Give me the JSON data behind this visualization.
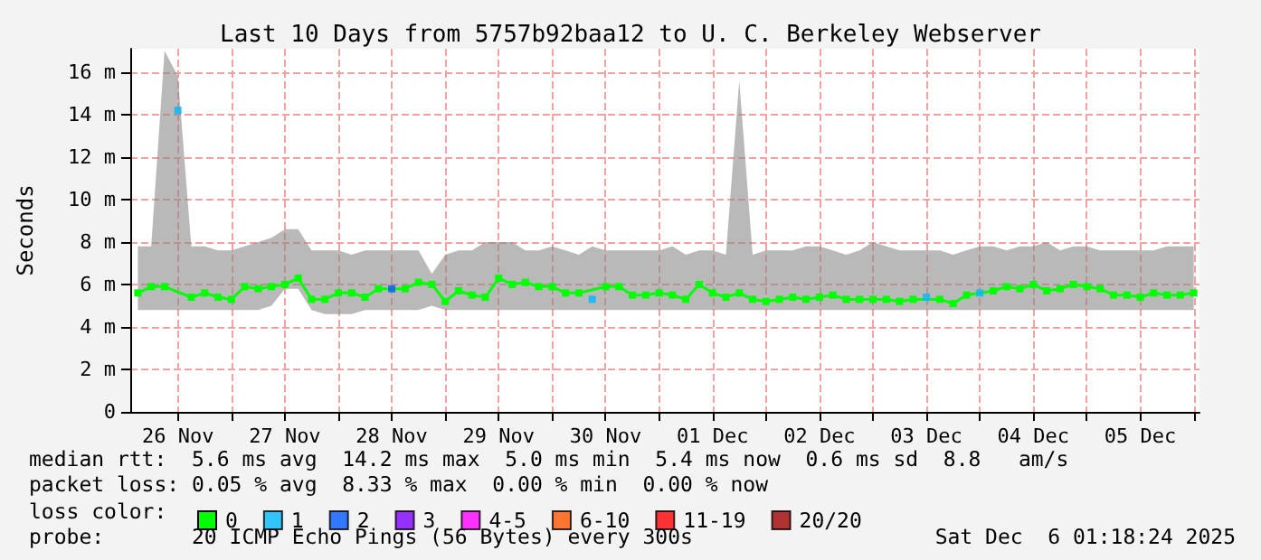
{
  "chart_data": {
    "type": "line",
    "title": "Last 10 Days from 5757b92baa12 to U. C. Berkeley Webserver",
    "ylabel": "Seconds",
    "xlim": [
      "2025-11-26T01:18",
      "2025-12-06T01:18"
    ],
    "xticks": [
      {
        "value": "2025-11-26T12:00",
        "label": "26 Nov"
      },
      {
        "value": "2025-11-27T00:00",
        "label": null
      },
      {
        "value": "2025-11-27T12:00",
        "label": "27 Nov"
      },
      {
        "value": "2025-11-28T00:00",
        "label": null
      },
      {
        "value": "2025-11-28T12:00",
        "label": "28 Nov"
      },
      {
        "value": "2025-11-29T00:00",
        "label": null
      },
      {
        "value": "2025-11-29T12:00",
        "label": "29 Nov"
      },
      {
        "value": "2025-11-30T00:00",
        "label": null
      },
      {
        "value": "2025-11-30T12:00",
        "label": "30 Nov"
      },
      {
        "value": "2025-12-01T00:00",
        "label": null
      },
      {
        "value": "2025-12-01T12:00",
        "label": "01 Dec"
      },
      {
        "value": "2025-12-02T00:00",
        "label": null
      },
      {
        "value": "2025-12-02T12:00",
        "label": "02 Dec"
      },
      {
        "value": "2025-12-03T00:00",
        "label": null
      },
      {
        "value": "2025-12-03T12:00",
        "label": "03 Dec"
      },
      {
        "value": "2025-12-04T00:00",
        "label": null
      },
      {
        "value": "2025-12-04T12:00",
        "label": "04 Dec"
      },
      {
        "value": "2025-12-05T00:00",
        "label": null
      },
      {
        "value": "2025-12-05T12:00",
        "label": "05 Dec"
      },
      {
        "value": "2025-12-06T00:00",
        "label": null
      }
    ],
    "ylim": [
      0,
      17.1
    ],
    "yticks": [
      0,
      {
        "value": 2,
        "label": "2 m"
      },
      {
        "value": 4,
        "label": "4 m"
      },
      {
        "value": 6,
        "label": "6 m"
      },
      {
        "value": 8,
        "label": "8 m"
      },
      {
        "value": 10,
        "label": "10 m"
      },
      {
        "value": 12,
        "label": "12 m"
      },
      {
        "value": 14,
        "label": "14 m"
      },
      {
        "value": 16,
        "label": "16 m"
      }
    ],
    "grid": true,
    "legend": "bottom",
    "legend_title": "loss color:",
    "marker": "square",
    "line_style": "solid",
    "annotations": [
      "median rtt:  5.6 ms avg  14.2 ms max  5.0 ms min  5.4 ms now  0.6 ms sd  8.8   am/s",
      "packet loss: 0.05 % avg  8.33 % max  0.00 % min  0.00 % now",
      "probe:       20 ICMP Echo Pings (56 Bytes) every 300s",
      "Sat Dec  6 01:18:24 2025"
    ],
    "x": [
      "2025-11-26T03:00",
      "2025-11-26T06:00",
      "2025-11-26T09:00",
      "2025-11-26T12:00",
      "2025-11-26T15:00",
      "2025-11-26T18:00",
      "2025-11-26T21:00",
      "2025-11-27T00:00",
      "2025-11-27T03:00",
      "2025-11-27T06:00",
      "2025-11-27T09:00",
      "2025-11-27T12:00",
      "2025-11-27T15:00",
      "2025-11-27T18:00",
      "2025-11-27T21:00",
      "2025-11-28T00:00",
      "2025-11-28T03:00",
      "2025-11-28T06:00",
      "2025-11-28T09:00",
      "2025-11-28T12:00",
      "2025-11-28T15:00",
      "2025-11-28T18:00",
      "2025-11-28T21:00",
      "2025-11-29T00:00",
      "2025-11-29T03:00",
      "2025-11-29T06:00",
      "2025-11-29T09:00",
      "2025-11-29T12:00",
      "2025-11-29T15:00",
      "2025-11-29T18:00",
      "2025-11-29T21:00",
      "2025-11-30T00:00",
      "2025-11-30T03:00",
      "2025-11-30T06:00",
      "2025-11-30T09:00",
      "2025-11-30T12:00",
      "2025-11-30T15:00",
      "2025-11-30T18:00",
      "2025-11-30T21:00",
      "2025-12-01T00:00",
      "2025-12-01T03:00",
      "2025-12-01T06:00",
      "2025-12-01T09:00",
      "2025-12-01T12:00",
      "2025-12-01T15:00",
      "2025-12-01T18:00",
      "2025-12-01T21:00",
      "2025-12-02T00:00",
      "2025-12-02T03:00",
      "2025-12-02T06:00",
      "2025-12-02T09:00",
      "2025-12-02T12:00",
      "2025-12-02T15:00",
      "2025-12-02T18:00",
      "2025-12-02T21:00",
      "2025-12-03T00:00",
      "2025-12-03T03:00",
      "2025-12-03T06:00",
      "2025-12-03T09:00",
      "2025-12-03T12:00",
      "2025-12-03T15:00",
      "2025-12-03T18:00",
      "2025-12-03T21:00",
      "2025-12-04T00:00",
      "2025-12-04T03:00",
      "2025-12-04T06:00",
      "2025-12-04T09:00",
      "2025-12-04T12:00",
      "2025-12-04T15:00",
      "2025-12-04T18:00",
      "2025-12-04T21:00",
      "2025-12-05T00:00",
      "2025-12-05T03:00",
      "2025-12-05T06:00",
      "2025-12-05T09:00",
      "2025-12-05T12:00",
      "2025-12-05T15:00",
      "2025-12-05T18:00",
      "2025-12-05T21:00",
      "2025-12-06T00:00"
    ],
    "series": [
      {
        "name": "0",
        "color": "#00ff00",
        "values": [
          5.6,
          5.9,
          5.9,
          null,
          5.4,
          5.6,
          5.4,
          5.3,
          5.9,
          5.8,
          5.9,
          6.0,
          6.3,
          5.3,
          5.3,
          5.6,
          5.6,
          5.4,
          5.8,
          null,
          5.8,
          6.1,
          6.0,
          5.2,
          5.7,
          5.5,
          5.4,
          6.3,
          6.0,
          6.1,
          5.9,
          5.9,
          5.6,
          5.6,
          null,
          5.9,
          5.9,
          5.5,
          5.5,
          5.6,
          5.5,
          5.3,
          6.0,
          5.6,
          5.4,
          5.6,
          5.3,
          5.2,
          5.3,
          5.4,
          5.3,
          5.4,
          5.5,
          5.3,
          5.3,
          5.3,
          5.3,
          5.2,
          5.3,
          null,
          5.3,
          5.1,
          5.5,
          null,
          5.7,
          5.9,
          5.8,
          6.0,
          5.7,
          5.8,
          6.0,
          5.9,
          5.8,
          5.5,
          5.5,
          5.4,
          5.6,
          5.5,
          5.5,
          5.6
        ],
        "lower": [
          4.8,
          4.8,
          4.8,
          4.8,
          4.8,
          4.8,
          4.8,
          4.8,
          4.8,
          4.8,
          5.0,
          5.8,
          5.8,
          4.8,
          4.6,
          4.6,
          4.6,
          4.8,
          4.8,
          4.8,
          4.8,
          4.8,
          5.0,
          4.8,
          4.8,
          4.8,
          4.8,
          4.8,
          4.8,
          4.8,
          4.8,
          4.8,
          4.8,
          4.8,
          4.8,
          4.8,
          4.8,
          4.8,
          4.8,
          4.8,
          4.8,
          4.8,
          4.8,
          4.8,
          4.8,
          4.8,
          4.8,
          4.8,
          4.8,
          4.8,
          4.8,
          4.8,
          4.8,
          4.8,
          4.8,
          4.8,
          4.8,
          4.8,
          4.8,
          4.8,
          4.8,
          4.8,
          4.8,
          4.8,
          4.8,
          4.8,
          4.8,
          4.8,
          4.8,
          4.8,
          4.8,
          4.8,
          4.8,
          4.8,
          4.8,
          4.8,
          4.8,
          4.8,
          4.8,
          4.8
        ],
        "upper": [
          7.8,
          7.8,
          17.0,
          15.8,
          7.8,
          7.8,
          7.6,
          7.6,
          7.8,
          8.0,
          8.2,
          8.6,
          8.6,
          7.6,
          7.6,
          7.6,
          7.4,
          7.6,
          7.6,
          7.6,
          7.6,
          7.6,
          6.5,
          7.4,
          7.6,
          7.6,
          8.0,
          8.0,
          8.0,
          7.6,
          7.6,
          7.8,
          7.6,
          7.4,
          7.8,
          7.6,
          7.6,
          7.6,
          7.6,
          7.6,
          7.8,
          7.4,
          7.6,
          7.6,
          7.4,
          15.6,
          7.4,
          7.6,
          7.6,
          7.6,
          7.8,
          7.8,
          7.6,
          7.4,
          7.6,
          8.0,
          7.8,
          7.6,
          7.6,
          7.6,
          7.6,
          7.4,
          7.6,
          7.8,
          7.8,
          7.6,
          7.8,
          7.8,
          8.0,
          7.6,
          7.8,
          7.8,
          7.6,
          7.6,
          7.6,
          7.6,
          7.6,
          7.8,
          7.8,
          7.8
        ]
      },
      {
        "name": "1",
        "type": "scatter",
        "color": "#00b8ff",
        "x": [
          "2025-11-26T12:00",
          "2025-11-30T09:00",
          "2025-12-03T12:00",
          "2025-12-04T00:00"
        ],
        "values": [
          14.2,
          5.3,
          5.4,
          5.6
        ]
      },
      {
        "name": "2",
        "type": "scatter",
        "color": "#0059ff",
        "x": [
          "2025-11-28T12:00"
        ],
        "values": [
          5.8
        ]
      },
      {
        "name": "3",
        "type": "scatter",
        "color": "#7e00ff",
        "values": [
          null,
          null,
          null,
          null,
          null,
          null,
          null,
          null,
          null,
          null,
          null,
          null,
          null,
          null,
          null,
          null,
          null,
          null,
          null,
          null,
          null,
          null,
          null,
          null,
          null,
          null,
          null,
          null,
          null,
          null,
          null,
          null,
          null,
          null,
          null,
          null,
          null,
          null,
          null,
          null,
          null,
          null,
          null,
          null,
          null,
          null,
          null,
          null,
          null,
          null,
          null,
          null,
          null,
          null,
          null,
          null,
          null,
          null,
          null,
          null,
          null,
          null,
          null,
          null,
          null,
          null,
          null,
          null,
          null,
          null,
          null,
          null,
          null,
          null,
          null,
          null,
          null,
          null,
          null,
          null
        ]
      },
      {
        "name": "4-5",
        "type": "scatter",
        "color": "#ff00ff",
        "values": [
          null,
          null,
          null,
          null,
          null,
          null,
          null,
          null,
          null,
          null,
          null,
          null,
          null,
          null,
          null,
          null,
          null,
          null,
          null,
          null,
          null,
          null,
          null,
          null,
          null,
          null,
          null,
          null,
          null,
          null,
          null,
          null,
          null,
          null,
          null,
          null,
          null,
          null,
          null,
          null,
          null,
          null,
          null,
          null,
          null,
          null,
          null,
          null,
          null,
          null,
          null,
          null,
          null,
          null,
          null,
          null,
          null,
          null,
          null,
          null,
          null,
          null,
          null,
          null,
          null,
          null,
          null,
          null,
          null,
          null,
          null,
          null,
          null,
          null,
          null,
          null,
          null,
          null,
          null,
          null
        ]
      },
      {
        "name": "6-10",
        "type": "scatter",
        "color": "#ff5500",
        "values": [
          null,
          null,
          null,
          null,
          null,
          null,
          null,
          null,
          null,
          null,
          null,
          null,
          null,
          null,
          null,
          null,
          null,
          null,
          null,
          null,
          null,
          null,
          null,
          null,
          null,
          null,
          null,
          null,
          null,
          null,
          null,
          null,
          null,
          null,
          null,
          null,
          null,
          null,
          null,
          null,
          null,
          null,
          null,
          null,
          null,
          null,
          null,
          null,
          null,
          null,
          null,
          null,
          null,
          null,
          null,
          null,
          null,
          null,
          null,
          null,
          null,
          null,
          null,
          null,
          null,
          null,
          null,
          null,
          null,
          null,
          null,
          null,
          null,
          null,
          null,
          null,
          null,
          null,
          null,
          null
        ]
      },
      {
        "name": "11-19",
        "type": "scatter",
        "color": "#ff0000",
        "values": [
          null,
          null,
          null,
          null,
          null,
          null,
          null,
          null,
          null,
          null,
          null,
          null,
          null,
          null,
          null,
          null,
          null,
          null,
          null,
          null,
          null,
          null,
          null,
          null,
          null,
          null,
          null,
          null,
          null,
          null,
          null,
          null,
          null,
          null,
          null,
          null,
          null,
          null,
          null,
          null,
          null,
          null,
          null,
          null,
          null,
          null,
          null,
          null,
          null,
          null,
          null,
          null,
          null,
          null,
          null,
          null,
          null,
          null,
          null,
          null,
          null,
          null,
          null,
          null,
          null,
          null,
          null,
          null,
          null,
          null,
          null,
          null,
          null,
          null,
          null,
          null,
          null,
          null,
          null,
          null
        ]
      },
      {
        "name": "20/20",
        "type": "scatter",
        "color": "#a10000",
        "values": [
          null,
          null,
          null,
          null,
          null,
          null,
          null,
          null,
          null,
          null,
          null,
          null,
          null,
          null,
          null,
          null,
          null,
          null,
          null,
          null,
          null,
          null,
          null,
          null,
          null,
          null,
          null,
          null,
          null,
          null,
          null,
          null,
          null,
          null,
          null,
          null,
          null,
          null,
          null,
          null,
          null,
          null,
          null,
          null,
          null,
          null,
          null,
          null,
          null,
          null,
          null,
          null,
          null,
          null,
          null,
          null,
          null,
          null,
          null,
          null,
          null,
          null,
          null,
          null,
          null,
          null,
          null,
          null,
          null,
          null,
          null,
          null,
          null,
          null,
          null,
          null,
          null,
          null,
          null,
          null
        ]
      }
    ]
  }
}
